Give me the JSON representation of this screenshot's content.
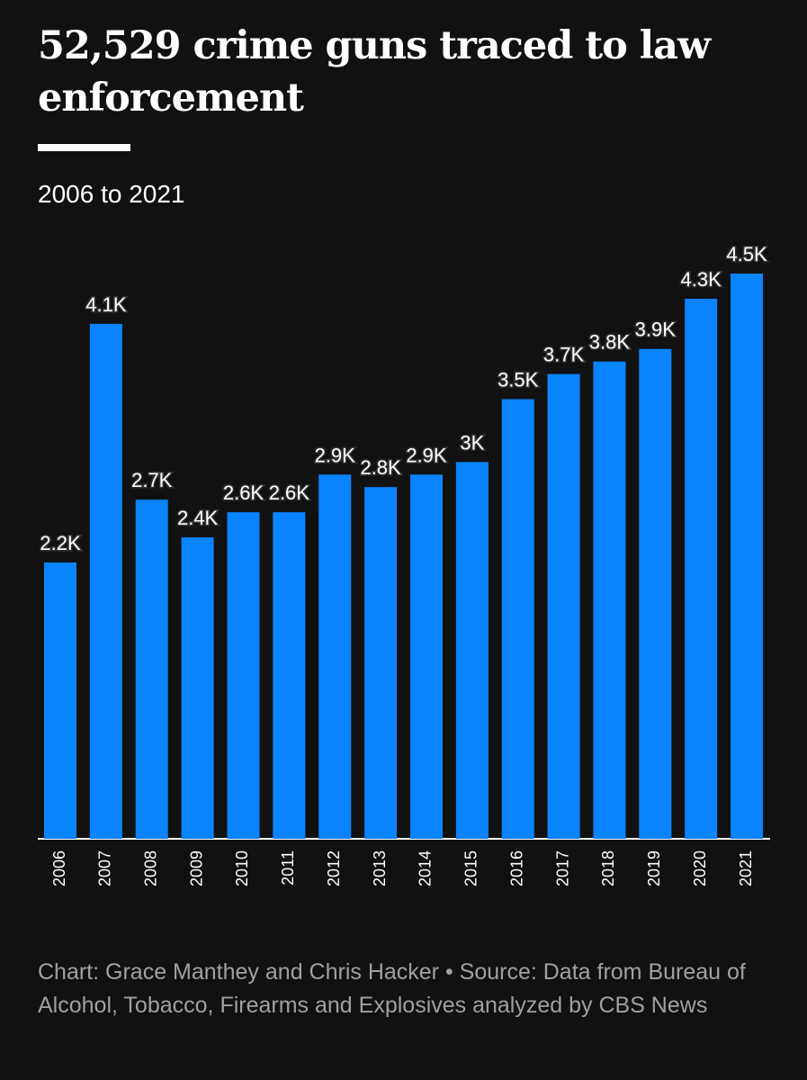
{
  "chart_data": {
    "type": "bar",
    "title": "52,529 crime guns traced to law enforcement",
    "subtitle": "2006 to 2021",
    "source": "Chart: Grace Manthey and Chris Hacker • Source: Data from Bureau of Alcohol, Tobacco, Firearms and Explosives analyzed by CBS News",
    "categories": [
      "2006",
      "2007",
      "2008",
      "2009",
      "2010",
      "2011",
      "2012",
      "2013",
      "2014",
      "2015",
      "2016",
      "2017",
      "2018",
      "2019",
      "2020",
      "2021"
    ],
    "values": [
      2.2,
      4.1,
      2.7,
      2.4,
      2.6,
      2.6,
      2.9,
      2.8,
      2.9,
      3,
      3.5,
      3.7,
      3.8,
      3.9,
      4.3,
      4.5
    ],
    "value_labels": [
      "2.2K",
      "4.1K",
      "2.7K",
      "2.4K",
      "2.6K",
      "2.6K",
      "2.9K",
      "2.8K",
      "2.9K",
      "3K",
      "3.5K",
      "3.7K",
      "3.8K",
      "3.9K",
      "4.3K",
      "4.5K"
    ],
    "color": "#0a84ff"
  }
}
